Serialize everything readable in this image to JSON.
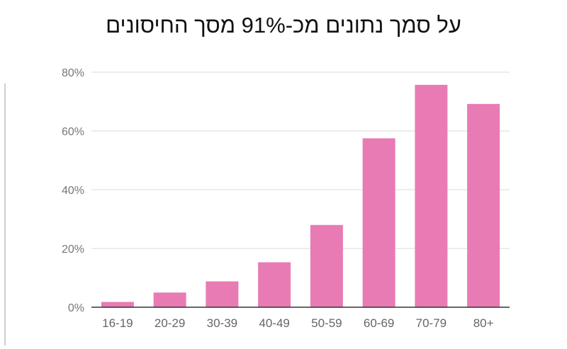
{
  "chart_data": {
    "type": "bar",
    "title": "על סמך נתונים מכ-91% מסך החיסונים",
    "xlabel": "",
    "ylabel": "",
    "categories": [
      "16-19",
      "20-29",
      "30-39",
      "40-49",
      "50-59",
      "60-69",
      "70-79",
      "80+"
    ],
    "values": [
      1.8,
      5.0,
      8.8,
      15.3,
      28.0,
      57.5,
      75.7,
      69.2
    ],
    "ylim": [
      0,
      80
    ],
    "yticks": [
      0,
      20,
      40,
      60,
      80
    ],
    "ytick_labels": [
      "0%",
      "20%",
      "40%",
      "60%",
      "80%"
    ],
    "grid": true,
    "bar_color": "#e87bb4",
    "gridline_color": "#d9d9d9",
    "axis_color": "#333333"
  }
}
